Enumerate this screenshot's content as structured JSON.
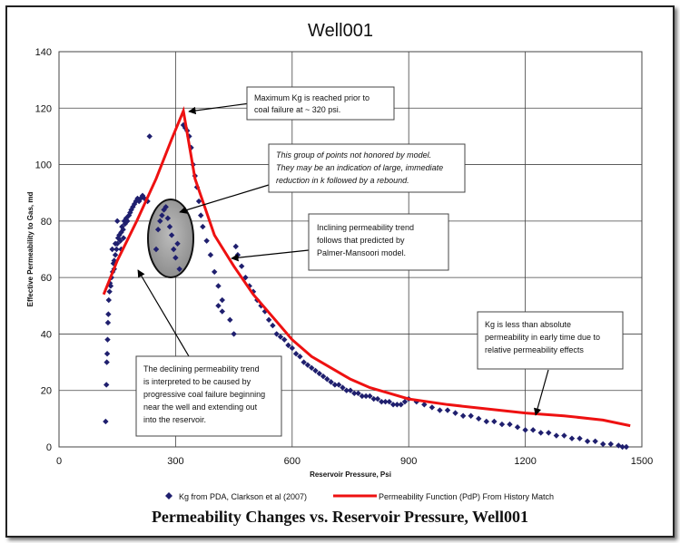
{
  "chart_data": {
    "type": "scatter",
    "title": "Well001",
    "xlabel": "Reservoir Pressure, Psi",
    "ylabel": "Effective Permeability to Gas, md",
    "xlim": [
      0,
      1500
    ],
    "ylim": [
      0,
      140
    ],
    "xticks": [
      "0",
      "300",
      "600",
      "900",
      "1200",
      "1500"
    ],
    "yticks": [
      "0",
      "20",
      "40",
      "60",
      "80",
      "100",
      "120",
      "140"
    ],
    "grid": true,
    "legend_position": "bottom",
    "series": [
      {
        "name": "Kg from PDA, Clarkson et al (2007)",
        "kind": "scatter",
        "color": "#1f1f6e",
        "points": [
          [
            120,
            9
          ],
          [
            122,
            22
          ],
          [
            123,
            30
          ],
          [
            124,
            33
          ],
          [
            125,
            38
          ],
          [
            126,
            44
          ],
          [
            127,
            47
          ],
          [
            128,
            52
          ],
          [
            130,
            55
          ],
          [
            131,
            58
          ],
          [
            133,
            57
          ],
          [
            135,
            60
          ],
          [
            138,
            62
          ],
          [
            140,
            65
          ],
          [
            142,
            66
          ],
          [
            145,
            68
          ],
          [
            148,
            70
          ],
          [
            150,
            72
          ],
          [
            152,
            74
          ],
          [
            155,
            75
          ],
          [
            158,
            73
          ],
          [
            160,
            76
          ],
          [
            162,
            78
          ],
          [
            165,
            77
          ],
          [
            168,
            80
          ],
          [
            170,
            79
          ],
          [
            173,
            81
          ],
          [
            176,
            80
          ],
          [
            180,
            82
          ],
          [
            183,
            83
          ],
          [
            186,
            84
          ],
          [
            190,
            85
          ],
          [
            194,
            86
          ],
          [
            198,
            87
          ],
          [
            202,
            88
          ],
          [
            206,
            87
          ],
          [
            210,
            88
          ],
          [
            215,
            89
          ],
          [
            220,
            88
          ],
          [
            228,
            87
          ],
          [
            233,
            110
          ],
          [
            150,
            80
          ],
          [
            142,
            63
          ],
          [
            137,
            70
          ],
          [
            145,
            72
          ],
          [
            160,
            70
          ],
          [
            166,
            74
          ],
          [
            250,
            70
          ],
          [
            255,
            77
          ],
          [
            260,
            80
          ],
          [
            265,
            82
          ],
          [
            270,
            84
          ],
          [
            275,
            85
          ],
          [
            280,
            81
          ],
          [
            285,
            78
          ],
          [
            290,
            75
          ],
          [
            295,
            70
          ],
          [
            300,
            67
          ],
          [
            305,
            72
          ],
          [
            310,
            63
          ],
          [
            320,
            114
          ],
          [
            325,
            113
          ],
          [
            330,
            112
          ],
          [
            335,
            110
          ],
          [
            340,
            106
          ],
          [
            345,
            100
          ],
          [
            350,
            96
          ],
          [
            355,
            92
          ],
          [
            360,
            87
          ],
          [
            365,
            82
          ],
          [
            370,
            78
          ],
          [
            380,
            73
          ],
          [
            390,
            68
          ],
          [
            400,
            62
          ],
          [
            410,
            57
          ],
          [
            420,
            52
          ],
          [
            410,
            50
          ],
          [
            420,
            48
          ],
          [
            440,
            45
          ],
          [
            450,
            40
          ],
          [
            455,
            71
          ],
          [
            460,
            68
          ],
          [
            470,
            64
          ],
          [
            480,
            60
          ],
          [
            490,
            57
          ],
          [
            500,
            55
          ],
          [
            510,
            52
          ],
          [
            520,
            50
          ],
          [
            530,
            48
          ],
          [
            540,
            45
          ],
          [
            550,
            43
          ],
          [
            560,
            40
          ],
          [
            570,
            39
          ],
          [
            580,
            38
          ],
          [
            590,
            36
          ],
          [
            600,
            35
          ],
          [
            610,
            33
          ],
          [
            620,
            32
          ],
          [
            630,
            30
          ],
          [
            640,
            29
          ],
          [
            650,
            28
          ],
          [
            660,
            27
          ],
          [
            670,
            26
          ],
          [
            680,
            25
          ],
          [
            690,
            24
          ],
          [
            700,
            23
          ],
          [
            710,
            22
          ],
          [
            720,
            22
          ],
          [
            730,
            21
          ],
          [
            740,
            20
          ],
          [
            750,
            20
          ],
          [
            760,
            19
          ],
          [
            770,
            19
          ],
          [
            780,
            18
          ],
          [
            790,
            18
          ],
          [
            800,
            18
          ],
          [
            810,
            17
          ],
          [
            820,
            17
          ],
          [
            830,
            16
          ],
          [
            840,
            16
          ],
          [
            850,
            16
          ],
          [
            860,
            15
          ],
          [
            870,
            15
          ],
          [
            880,
            15
          ],
          [
            890,
            16
          ],
          [
            900,
            17
          ],
          [
            920,
            16
          ],
          [
            940,
            15
          ],
          [
            960,
            14
          ],
          [
            980,
            13
          ],
          [
            1000,
            13
          ],
          [
            1020,
            12
          ],
          [
            1040,
            11
          ],
          [
            1060,
            11
          ],
          [
            1080,
            10
          ],
          [
            1100,
            9
          ],
          [
            1120,
            9
          ],
          [
            1140,
            8
          ],
          [
            1160,
            8
          ],
          [
            1180,
            7
          ],
          [
            1200,
            6
          ],
          [
            1220,
            6
          ],
          [
            1240,
            5
          ],
          [
            1260,
            5
          ],
          [
            1280,
            4
          ],
          [
            1300,
            4
          ],
          [
            1320,
            3
          ],
          [
            1340,
            3
          ],
          [
            1360,
            2
          ],
          [
            1380,
            2
          ],
          [
            1400,
            1
          ],
          [
            1420,
            1
          ],
          [
            1440,
            0.5
          ],
          [
            1450,
            0
          ],
          [
            1460,
            0
          ]
        ]
      },
      {
        "name": "Permeability Function (PdP) From History Match",
        "kind": "line",
        "color": "#ee1111",
        "points": [
          [
            115,
            54
          ],
          [
            150,
            66
          ],
          [
            200,
            80
          ],
          [
            250,
            95
          ],
          [
            290,
            109
          ],
          [
            320,
            119
          ],
          [
            350,
            95
          ],
          [
            400,
            75
          ],
          [
            450,
            64
          ],
          [
            500,
            54
          ],
          [
            550,
            46
          ],
          [
            600,
            38
          ],
          [
            650,
            32
          ],
          [
            700,
            28
          ],
          [
            750,
            24
          ],
          [
            800,
            21
          ],
          [
            850,
            19
          ],
          [
            900,
            17
          ],
          [
            1000,
            15
          ],
          [
            1100,
            13.5
          ],
          [
            1200,
            12
          ],
          [
            1300,
            11
          ],
          [
            1400,
            9.5
          ],
          [
            1470,
            7.5
          ]
        ]
      }
    ],
    "annotations": [
      "Maximum Kg is reached prior to coal failure at ~ 320 psi.",
      "This group of points not honored by model. They may be an indication of large, immediate reduction in k followed by a rebound.",
      "Inclining permeability trend follows that predicted by Palmer-Mansoori model.",
      "Kg is less than absolute permeability in early time due to relative permeability effects",
      "The declining permeability trend is interpreted to be caused by progressive coal failure beginning near the well and extending out into the reservoir."
    ]
  },
  "caption": "Permeability Changes vs. Reservoir Pressure, Well001",
  "annotation_boxes": {
    "max_kg": [
      "Maximum Kg is reached prior to",
      "coal failure at ~ 320 psi."
    ],
    "not_honored": [
      "This group of points not honored by model.",
      "They may be an indication of large, immediate",
      "reduction in k followed by a rebound."
    ],
    "inclining": [
      "Inclining permeability trend",
      "follows that predicted by",
      "Palmer-Mansoori model."
    ],
    "kg_less": [
      "Kg is less than absolute",
      "permeability in early time due to",
      "relative permeability effects"
    ],
    "declining": [
      "The declining permeability trend",
      "is interpreted to be caused by",
      "progressive coal failure beginning",
      "near the well and extending out",
      "into the reservoir."
    ]
  }
}
